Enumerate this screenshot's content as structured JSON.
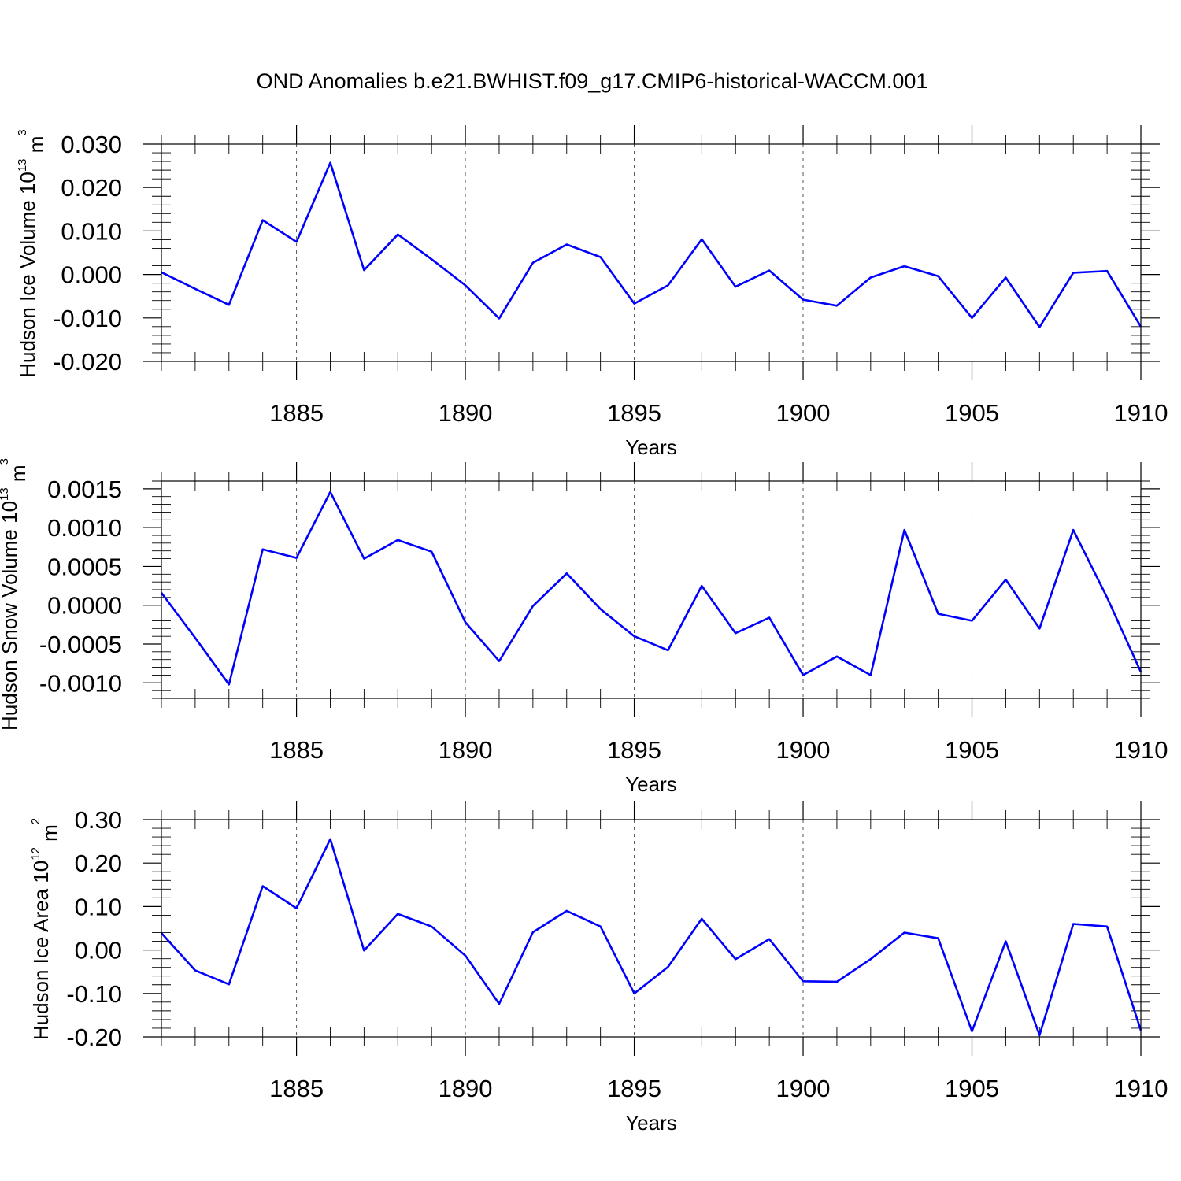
{
  "title": "OND Anomalies b.e21.BWHIST.f09_g17.CMIP6-historical-WACCM.001",
  "chart_data": [
    {
      "type": "line",
      "ylabel": "Hudson Ice Volume 10",
      "ylabel_exp": "13",
      "ylabel_unit": " m",
      "ylabel_unit_exp": "3",
      "xlabel": "Years",
      "xlim": [
        1881,
        1910
      ],
      "ylim": [
        -0.02,
        0.03
      ],
      "yticks": [
        -0.02,
        -0.01,
        0.0,
        0.01,
        0.02,
        0.03
      ],
      "ytick_labels": [
        "-0.020",
        "-0.010",
        "0.000",
        "0.010",
        "0.020",
        "0.030"
      ],
      "xticks": [
        1885,
        1890,
        1895,
        1900,
        1905,
        1910
      ],
      "xtick_labels": [
        "1885",
        "1890",
        "1895",
        "1900",
        "1905",
        "1910"
      ],
      "grid": "vertical dashed at major x ticks",
      "color": "#0000ff",
      "x": [
        1881,
        1882,
        1883,
        1884,
        1885,
        1886,
        1887,
        1888,
        1889,
        1890,
        1891,
        1892,
        1893,
        1894,
        1895,
        1896,
        1897,
        1898,
        1899,
        1900,
        1901,
        1902,
        1903,
        1904,
        1905,
        1906,
        1907,
        1908,
        1909,
        1910
      ],
      "values": [
        0.0005,
        -0.0033,
        -0.007,
        0.0125,
        0.0075,
        0.0257,
        0.001,
        0.0092,
        0.0035,
        -0.0025,
        -0.0101,
        0.0027,
        0.0069,
        0.004,
        -0.0067,
        -0.0025,
        0.0081,
        -0.0028,
        0.0009,
        -0.0058,
        -0.0072,
        -0.0007,
        0.0019,
        -0.0004,
        -0.01,
        -0.0007,
        -0.0121,
        0.0004,
        0.0008,
        -0.012
      ]
    },
    {
      "type": "line",
      "ylabel": "Hudson Snow Volume 10",
      "ylabel_exp": "13",
      "ylabel_unit": " m",
      "ylabel_unit_exp": "3",
      "xlabel": "Years",
      "xlim": [
        1881,
        1910
      ],
      "ylim": [
        -0.0012,
        0.0016
      ],
      "yticks": [
        -0.001,
        -0.0005,
        0.0,
        0.0005,
        0.001,
        0.0015
      ],
      "ytick_labels": [
        "-0.0010",
        "-0.0005",
        "0.0000",
        "0.0005",
        "0.0010",
        "0.0015"
      ],
      "xticks": [
        1885,
        1890,
        1895,
        1900,
        1905,
        1910
      ],
      "xtick_labels": [
        "1885",
        "1890",
        "1895",
        "1900",
        "1905",
        "1910"
      ],
      "grid": "vertical dashed at major x ticks",
      "color": "#0000ff",
      "x": [
        1881,
        1882,
        1883,
        1884,
        1885,
        1886,
        1887,
        1888,
        1889,
        1890,
        1891,
        1892,
        1893,
        1894,
        1895,
        1896,
        1897,
        1898,
        1899,
        1900,
        1901,
        1902,
        1903,
        1904,
        1905,
        1906,
        1907,
        1908,
        1909,
        1910
      ],
      "values": [
        0.00016,
        -0.00042,
        -0.00102,
        0.00072,
        0.00061,
        0.00146,
        0.0006,
        0.00084,
        0.00069,
        -0.00022,
        -0.00072,
        -1e-05,
        0.00041,
        -5e-05,
        -0.0004,
        -0.00058,
        0.00025,
        -0.00036,
        -0.00016,
        -0.0009,
        -0.00066,
        -0.0009,
        0.00097,
        -0.00011,
        -0.0002,
        0.00033,
        -0.0003,
        0.00097,
        0.0001,
        -0.00086
      ]
    },
    {
      "type": "line",
      "ylabel": "Hudson Ice Area 10",
      "ylabel_exp": "12",
      "ylabel_unit": " m",
      "ylabel_unit_exp": "2",
      "xlabel": "Years",
      "xlim": [
        1881,
        1910
      ],
      "ylim": [
        -0.2,
        0.3
      ],
      "yticks": [
        -0.2,
        -0.1,
        0.0,
        0.1,
        0.2,
        0.3
      ],
      "ytick_labels": [
        "-0.20",
        "-0.10",
        "0.00",
        "0.10",
        "0.20",
        "0.30"
      ],
      "xticks": [
        1885,
        1890,
        1895,
        1900,
        1905,
        1910
      ],
      "xtick_labels": [
        "1885",
        "1890",
        "1895",
        "1900",
        "1905",
        "1910"
      ],
      "grid": "vertical dashed at major x ticks",
      "color": "#0000ff",
      "x": [
        1881,
        1882,
        1883,
        1884,
        1885,
        1886,
        1887,
        1888,
        1889,
        1890,
        1891,
        1892,
        1893,
        1894,
        1895,
        1896,
        1897,
        1898,
        1899,
        1900,
        1901,
        1902,
        1903,
        1904,
        1905,
        1906,
        1907,
        1908,
        1909,
        1910
      ],
      "values": [
        0.039,
        -0.047,
        -0.079,
        0.147,
        0.096,
        0.255,
        -0.001,
        0.083,
        0.054,
        -0.013,
        -0.124,
        0.041,
        0.09,
        0.054,
        -0.1,
        -0.039,
        0.072,
        -0.021,
        0.025,
        -0.072,
        -0.073,
        -0.021,
        0.04,
        0.027,
        -0.187,
        0.02,
        -0.196,
        0.06,
        0.054,
        -0.185
      ]
    }
  ]
}
